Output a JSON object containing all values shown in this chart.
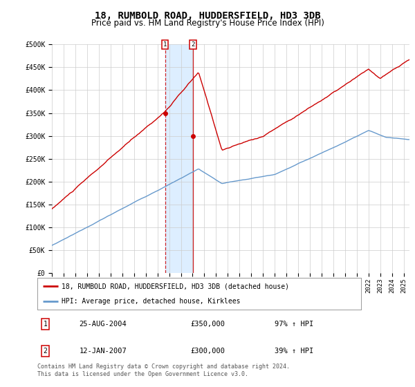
{
  "title": "18, RUMBOLD ROAD, HUDDERSFIELD, HD3 3DB",
  "subtitle": "Price paid vs. HM Land Registry's House Price Index (HPI)",
  "ylabel_ticks": [
    "£0",
    "£50K",
    "£100K",
    "£150K",
    "£200K",
    "£250K",
    "£300K",
    "£350K",
    "£400K",
    "£450K",
    "£500K"
  ],
  "ytick_vals": [
    0,
    50000,
    100000,
    150000,
    200000,
    250000,
    300000,
    350000,
    400000,
    450000,
    500000
  ],
  "ylim": [
    0,
    500000
  ],
  "xlim_start": 1995.0,
  "xlim_end": 2025.5,
  "sale1_date": 2004.646,
  "sale1_price": 350000,
  "sale1_label": "1",
  "sale2_date": 2007.04,
  "sale2_price": 300000,
  "sale2_label": "2",
  "red_line_color": "#cc0000",
  "blue_line_color": "#6699cc",
  "shade_color": "#ddeeff",
  "grid_color": "#cccccc",
  "bg_color": "#ffffff",
  "legend_label_red": "18, RUMBOLD ROAD, HUDDERSFIELD, HD3 3DB (detached house)",
  "legend_label_blue": "HPI: Average price, detached house, Kirklees",
  "footer": "Contains HM Land Registry data © Crown copyright and database right 2024.\nThis data is licensed under the Open Government Licence v3.0.",
  "title_fontsize": 10,
  "subtitle_fontsize": 8.5,
  "tick_fontsize": 7,
  "red_seed": 10,
  "blue_seed": 20
}
